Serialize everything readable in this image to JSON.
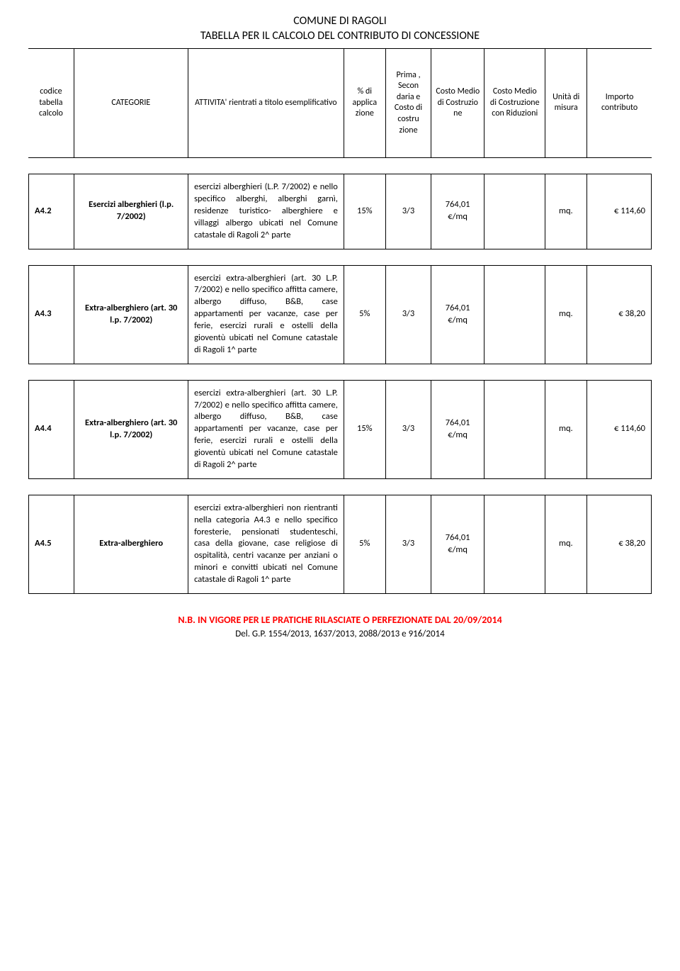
{
  "title_line1": "COMUNE DI RAGOLI",
  "title_line2": "TABELLA PER IL CALCOLO DEL CONTRIBUTO DI CONCESSIONE",
  "header": {
    "c1": "codice tabella calcolo",
    "c2": "CATEGORIE",
    "c3": "ATTIVITA' rientrati a titolo esemplificativo",
    "c4": "% di applica zione",
    "c5": "Prima , Secon daria e Costo di costru zione",
    "c6": "Costo Medio di Costruzio ne",
    "c7": "Costo Medio di Costruzione con Riduzioni",
    "c8": "Unità di misura",
    "c9": "Importo contributo"
  },
  "rows": [
    {
      "code": "A4.2",
      "cat": "Esercizi alberghieri (l.p. 7/2002)",
      "desc": "esercizi alberghieri (L.P. 7/2002) e nello specifico alberghi, alberghi garnì, residenze turistico- alberghiere e villaggi albergo ubicati nel Comune catastale di Ragoli 2^ parte",
      "pct": "15%",
      "frac": "3/3",
      "costo": "764,01 €/mq",
      "unit": "mq.",
      "imp": "€ 114,60"
    },
    {
      "code": "A4.3",
      "cat": "Extra-alberghiero (art. 30 l.p. 7/2002)",
      "desc": "esercizi extra-alberghieri (art. 30 L.P. 7/2002) e nello specifico affitta camere, albergo diffuso, B&B, case appartamenti per vacanze, case per ferie, esercizi rurali e ostelli della gioventù ubicati nel Comune catastale di Ragoli 1^ parte",
      "pct": "5%",
      "frac": "3/3",
      "costo": "764,01 €/mq",
      "unit": "mq.",
      "imp": "€ 38,20"
    },
    {
      "code": "A4.4",
      "cat": "Extra-alberghiero (art. 30 l.p. 7/2002)",
      "desc": "esercizi extra-alberghieri (art. 30 L.P. 7/2002) e nello specifico affitta camere, albergo diffuso, B&B, case appartamenti per vacanze, case per ferie, esercizi rurali e ostelli della gioventù ubicati nel Comune catastale di Ragoli 2^ parte",
      "pct": "15%",
      "frac": "3/3",
      "costo": "764,01 €/mq",
      "unit": "mq.",
      "imp": "€ 114,60"
    },
    {
      "code": "A4.5",
      "cat": "Extra-alberghiero",
      "desc": "esercizi extra-alberghieri non rientranti nella categoria A4.3 e nello specifico foresterie, pensionati studenteschi, casa della giovane, case religiose di ospitalità, centri vacanze per anziani o minori e convitti ubicati nel Comune catastale di Ragoli 1^ parte",
      "pct": "5%",
      "frac": "3/3",
      "costo": "764,01 €/mq",
      "unit": "mq.",
      "imp": "€ 38,20"
    }
  ],
  "footer": {
    "line1": "N.B. IN VIGORE PER LE PRATICHE RILASCIATE O PERFEZIONATE DAL 20/09/2014",
    "line2": "Del. G.P. 1554/2013, 1637/2013, 2088/2013 e 916/2014"
  }
}
